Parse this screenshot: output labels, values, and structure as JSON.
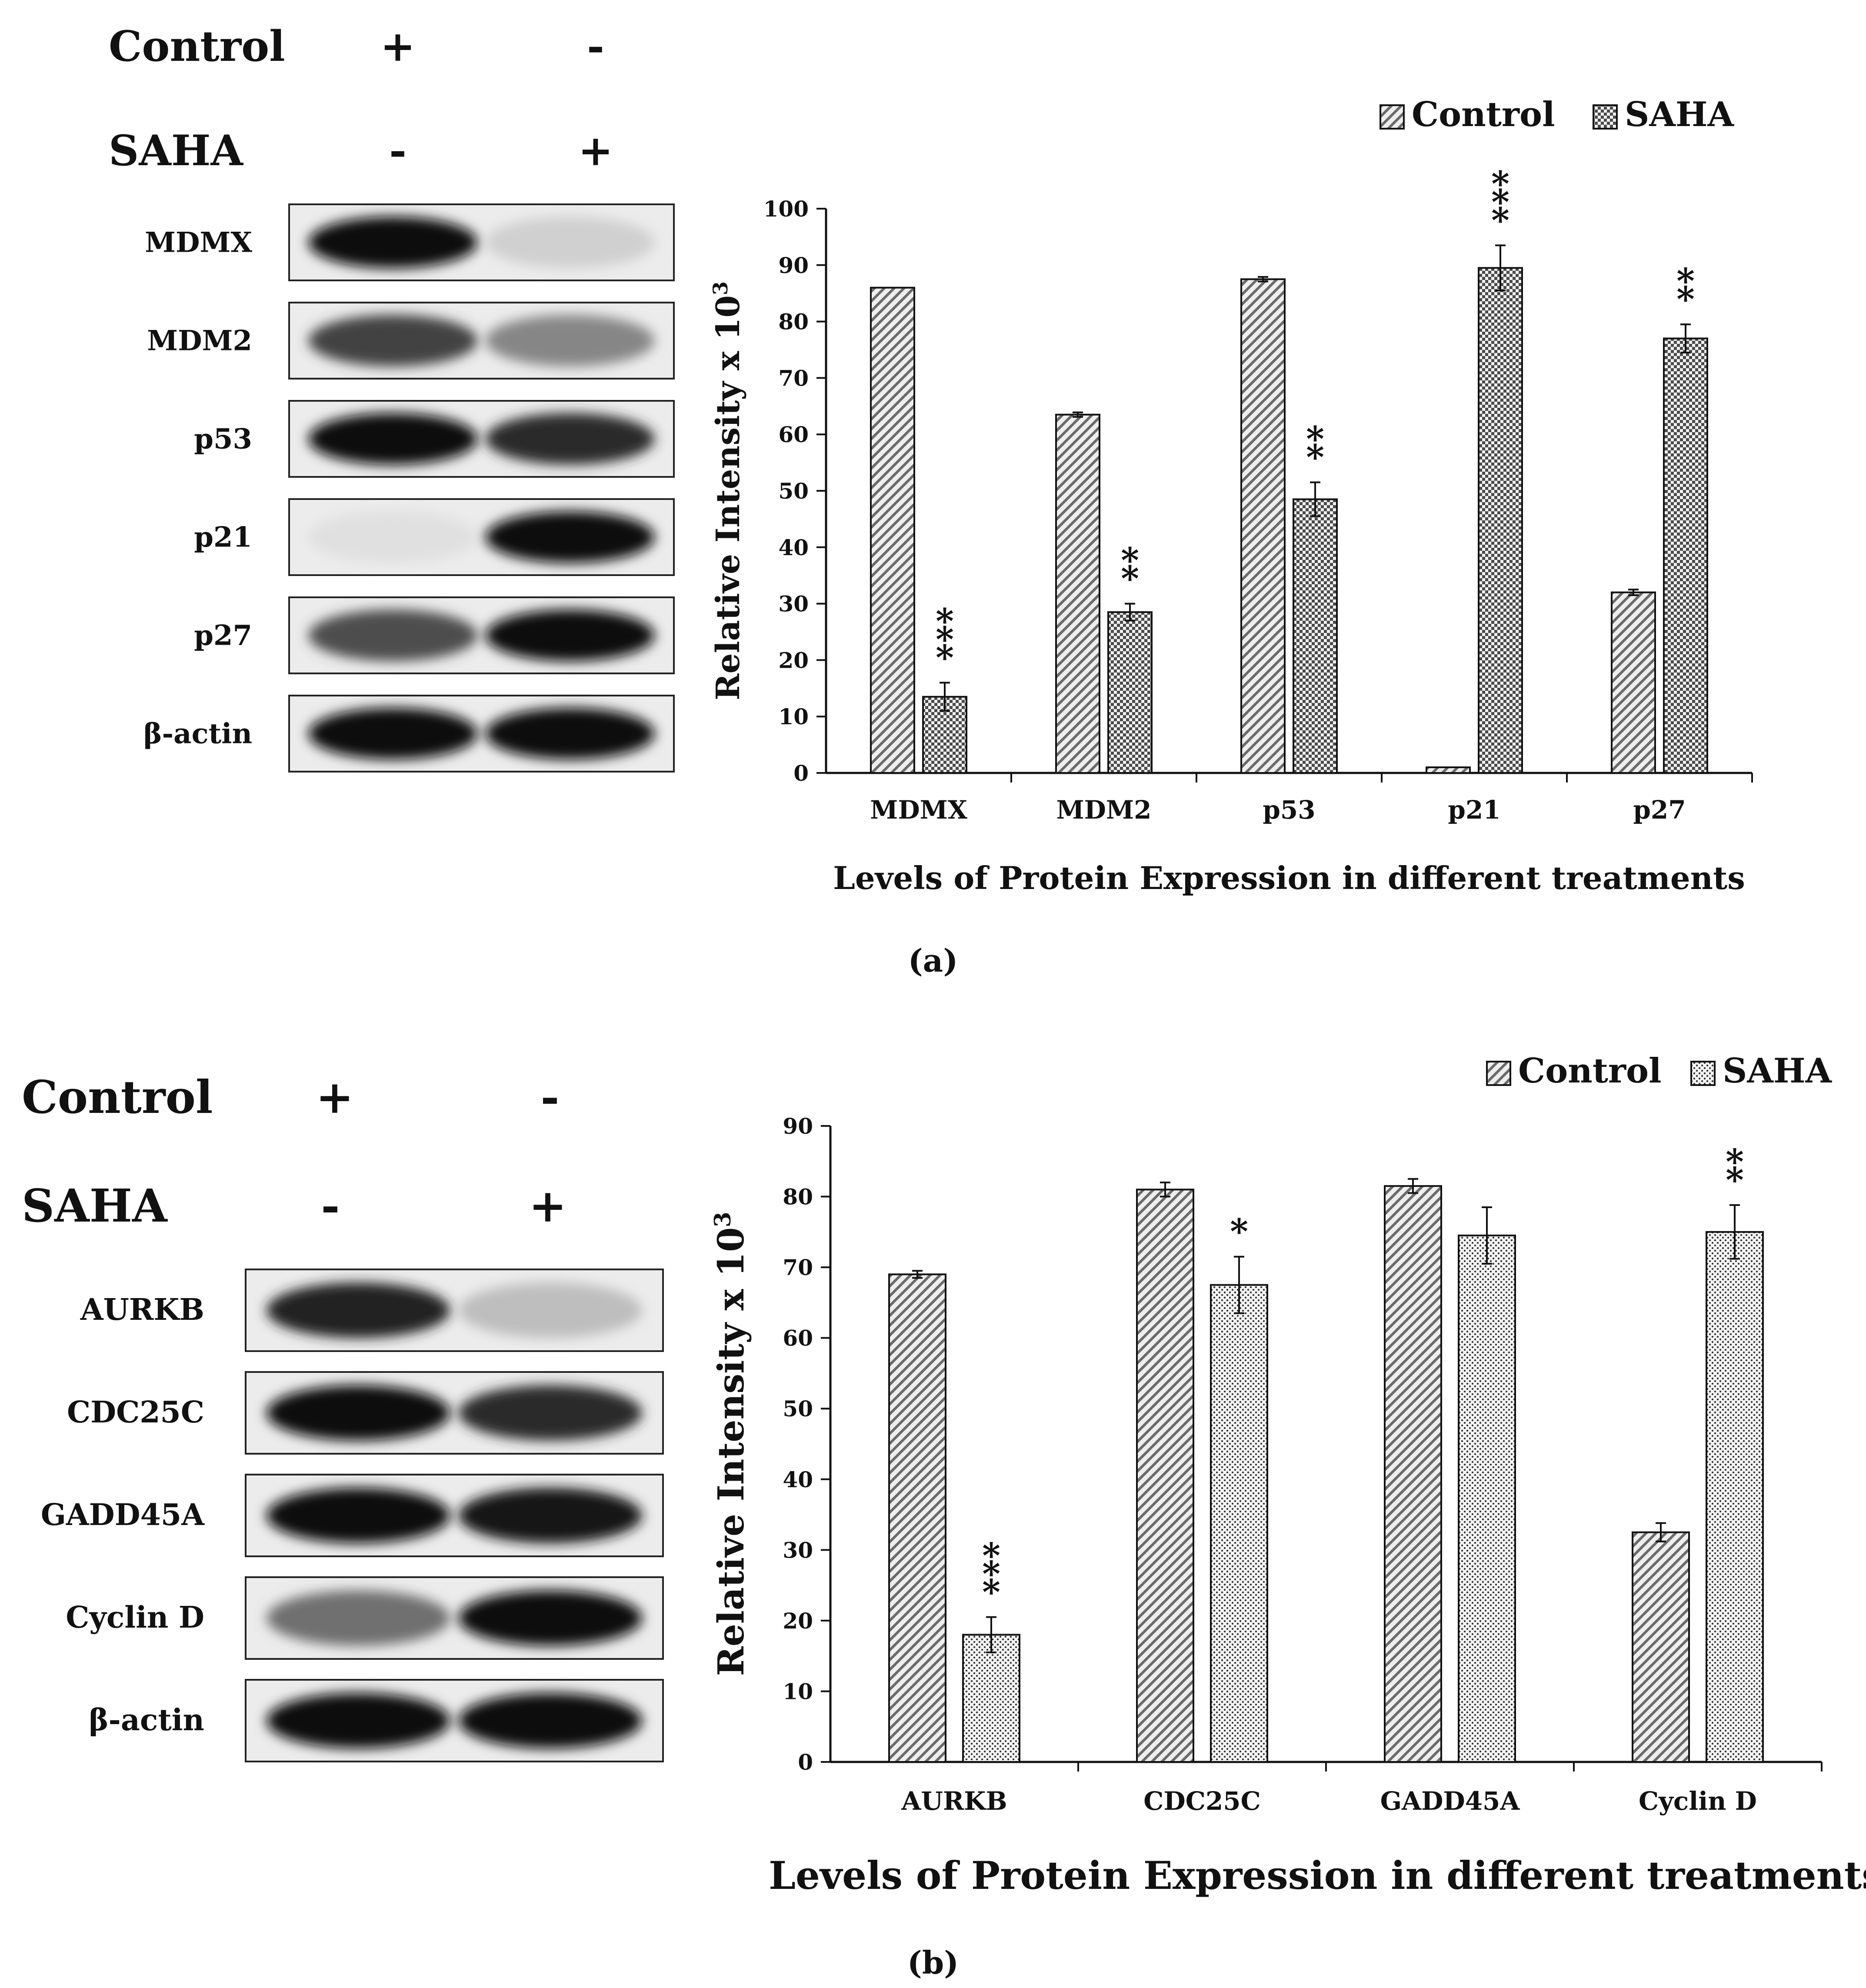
{
  "panels": [
    {
      "caption": "(a)",
      "blot": {
        "conditions": [
          {
            "label": "Control",
            "signs": [
              "+",
              "-"
            ]
          },
          {
            "label": "SAHA",
            "signs": [
              "-",
              "+"
            ]
          }
        ],
        "bands": [
          {
            "label": "MDMX",
            "intensity": [
              1.0,
              0.12
            ]
          },
          {
            "label": "MDM2",
            "intensity": [
              0.75,
              0.45
            ]
          },
          {
            "label": "p53",
            "intensity": [
              1.0,
              0.85
            ]
          },
          {
            "label": "p21",
            "intensity": [
              0.05,
              1.0
            ]
          },
          {
            "label": "p27",
            "intensity": [
              0.7,
              1.0
            ]
          },
          {
            "label": "β-actin",
            "intensity": [
              1.0,
              1.0
            ]
          }
        ]
      }
    },
    {
      "caption": "(b)",
      "blot": {
        "conditions": [
          {
            "label": "Control",
            "signs": [
              "+",
              "-"
            ]
          },
          {
            "label": "SAHA",
            "signs": [
              "-",
              "+"
            ]
          }
        ],
        "bands": [
          {
            "label": "AURKB",
            "intensity": [
              0.9,
              0.2
            ]
          },
          {
            "label": "CDC25C",
            "intensity": [
              1.0,
              0.85
            ]
          },
          {
            "label": "GADD45A",
            "intensity": [
              1.0,
              0.95
            ]
          },
          {
            "label": "Cyclin D",
            "intensity": [
              0.55,
              1.0
            ]
          },
          {
            "label": "β-actin",
            "intensity": [
              1.0,
              1.0
            ]
          }
        ]
      }
    }
  ],
  "chart_data": [
    {
      "type": "bar",
      "categories": [
        "MDMX",
        "MDM2",
        "p53",
        "p21",
        "p27"
      ],
      "series": [
        {
          "name": "Control",
          "pattern": "diagonal-hatch",
          "values": [
            86,
            63.5,
            87.5,
            1,
            32
          ],
          "errors": [
            0,
            0.4,
            0.4,
            0,
            0.5
          ]
        },
        {
          "name": "SAHA",
          "pattern": "checker",
          "values": [
            13.5,
            28.5,
            48.5,
            89.5,
            77
          ],
          "errors": [
            2.5,
            1.5,
            3,
            4,
            2.5
          ]
        }
      ],
      "significance": [
        "***",
        "**",
        "**",
        "***",
        "**"
      ],
      "ylabel": "Relative Intensity x 10",
      "ylabel_superscript": "3",
      "xlabel": "Levels of Protein Expression in different treatments",
      "ylim": [
        0,
        100
      ],
      "yticks": [
        0,
        10,
        20,
        30,
        40,
        50,
        60,
        70,
        80,
        90,
        100
      ],
      "legend_position": "top-right",
      "grid": false
    },
    {
      "type": "bar",
      "categories": [
        "AURKB",
        "CDC25C",
        "GADD45A",
        "Cyclin D"
      ],
      "series": [
        {
          "name": "Control",
          "pattern": "diagonal-hatch",
          "values": [
            69,
            81,
            81.5,
            32.5
          ],
          "errors": [
            0.5,
            1,
            1,
            1.3
          ]
        },
        {
          "name": "SAHA",
          "pattern": "stipple",
          "values": [
            18,
            67.5,
            74.5,
            75
          ],
          "errors": [
            2.5,
            4,
            4,
            3.8
          ]
        }
      ],
      "significance": [
        "***",
        "*",
        "",
        "**"
      ],
      "ylabel": "Relative Intensity x 10",
      "ylabel_superscript": "3",
      "xlabel": "Levels of Protein Expression in different treatments",
      "ylim": [
        0,
        90
      ],
      "yticks": [
        0,
        10,
        20,
        30,
        40,
        50,
        60,
        70,
        80,
        90
      ],
      "legend_position": "top-right",
      "grid": false
    }
  ]
}
